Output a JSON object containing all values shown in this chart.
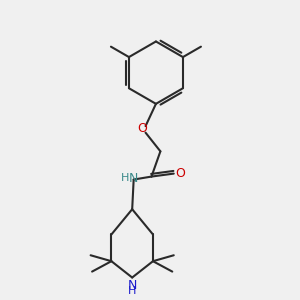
{
  "bg_color": "#f0f0f0",
  "bond_color": "#2a2a2a",
  "oxygen_color": "#cc0000",
  "nitrogen_color": "#3a8a8a",
  "nh_nitrogen_color": "#1a1acc",
  "figsize": [
    3.0,
    3.0
  ],
  "dpi": 100,
  "xlim": [
    0,
    10
  ],
  "ylim": [
    0,
    10
  ]
}
